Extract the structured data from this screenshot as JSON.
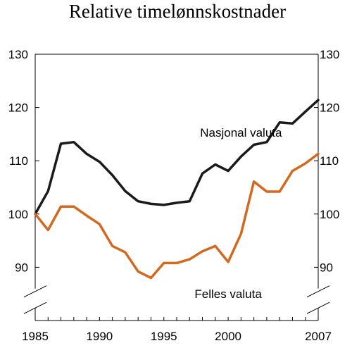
{
  "chart_data": {
    "type": "line",
    "title": "Relative timelønnskostnader",
    "xlabel": "",
    "ylabel": "",
    "xlim": [
      1985,
      2007
    ],
    "ylim": [
      80,
      130
    ],
    "x_ticks": [
      "1985",
      "1990",
      "1995",
      "2000",
      "2007"
    ],
    "y_ticks": [
      "130",
      "120",
      "110",
      "100",
      "90"
    ],
    "axis_break": true,
    "grid": false,
    "x": [
      1985,
      1986,
      1987,
      1988,
      1989,
      1990,
      1991,
      1992,
      1993,
      1994,
      1995,
      1996,
      1997,
      1998,
      1999,
      2000,
      2001,
      2002,
      2003,
      2004,
      2005,
      2006,
      2007
    ],
    "series": [
      {
        "name": "Nasjonal valuta",
        "color": "#1a1a1a",
        "values": [
          100,
          104.3,
          113.2,
          113.5,
          111.3,
          109.8,
          107.3,
          104.3,
          102.4,
          101.9,
          101.7,
          102.1,
          102.4,
          107.6,
          109.3,
          108.1,
          110.8,
          113.0,
          113.5,
          117.2,
          117.0,
          119.2,
          121.4
        ]
      },
      {
        "name": "Felles valuta",
        "color": "#d2691e",
        "values": [
          100,
          97.0,
          101.4,
          101.4,
          99.7,
          98.1,
          94.0,
          92.8,
          89.2,
          88.0,
          90.8,
          90.8,
          91.5,
          93.0,
          94.0,
          91.0,
          96.3,
          106.1,
          104.2,
          104.2,
          108.1,
          109.5,
          111.3
        ]
      }
    ]
  }
}
